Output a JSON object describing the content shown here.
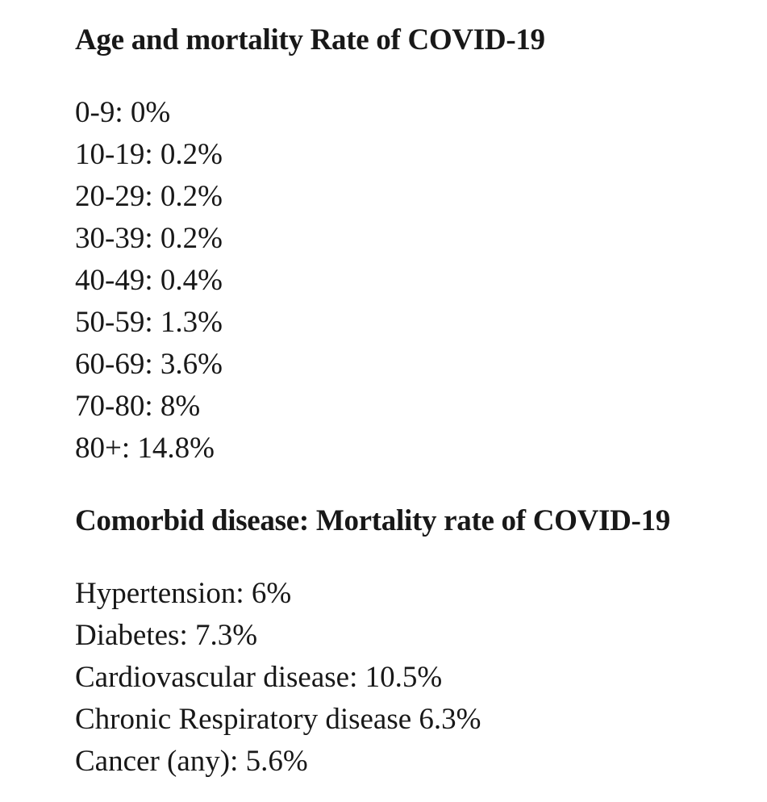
{
  "page": {
    "background_color": "#ffffff",
    "text_color": "#181818"
  },
  "sections": [
    {
      "id": "age-mortality",
      "heading": "Age and mortality Rate of COVID-19",
      "lines": [
        "0-9: 0%",
        "10-19: 0.2%",
        "20-29: 0.2%",
        "30-39: 0.2%",
        "40-49: 0.4%",
        "50-59: 1.3%",
        "60-69: 3.6%",
        "70-80: 8%",
        "80+: 14.8%"
      ]
    },
    {
      "id": "comorbid-mortality",
      "heading": "Comorbid disease: Mortality rate of COVID-19",
      "lines": [
        "Hypertension: 6%",
        "Diabetes: 7.3%",
        "Cardiovascular disease: 10.5%",
        "Chronic Respiratory disease 6.3%",
        "Cancer (any): 5.6%"
      ]
    }
  ]
}
